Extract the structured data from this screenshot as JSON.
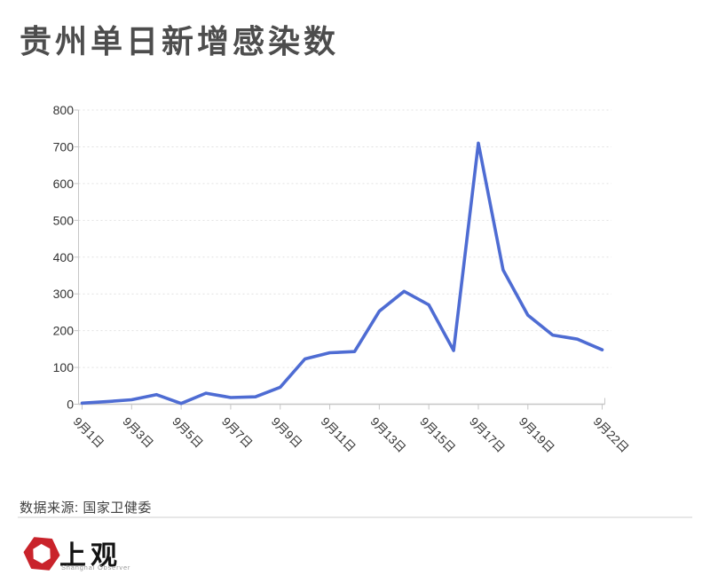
{
  "page": {
    "background": "#ffffff"
  },
  "header": {
    "title": "贵州单日新增感染数",
    "title_color": "#4d4d4d"
  },
  "chart_data": {
    "type": "line",
    "title": "贵州单日新增感染数",
    "x": [
      "9月1日",
      "9月2日",
      "9月3日",
      "9月4日",
      "9月5日",
      "9月6日",
      "9月7日",
      "9月8日",
      "9月9日",
      "9月10日",
      "9月11日",
      "9月12日",
      "9月13日",
      "9月14日",
      "9月15日",
      "9月16日",
      "9月17日",
      "9月18日",
      "9月19日",
      "9月20日",
      "9月21日",
      "9月22日"
    ],
    "values": [
      3,
      7,
      12,
      26,
      2,
      30,
      18,
      20,
      46,
      123,
      140,
      143,
      253,
      307,
      270,
      146,
      710,
      365,
      242,
      188,
      177,
      148
    ],
    "x_tick_labels": [
      "9月1日",
      "9月3日",
      "9月5日",
      "9月7日",
      "9月9日",
      "9月11日",
      "9月13日",
      "9月15日",
      "9月17日",
      "9月19日",
      "9月22日"
    ],
    "y_ticks": [
      0,
      100,
      200,
      300,
      400,
      500,
      600,
      700,
      800
    ],
    "ylim": [
      0,
      800
    ],
    "xlabel": "",
    "ylabel": "",
    "grid": "dashed-horizontal",
    "legend": "none",
    "line_color": "#4e6cd3",
    "axis_color": "#c6c6c6",
    "grid_color": "#e1e1e1",
    "tick_label_color": "#333333"
  },
  "footer": {
    "source_label": "数据来源: 国家卫健委"
  },
  "logo": {
    "text_cn": "上观",
    "text_en": "Shanghai Observer",
    "color": "#c9232b"
  }
}
